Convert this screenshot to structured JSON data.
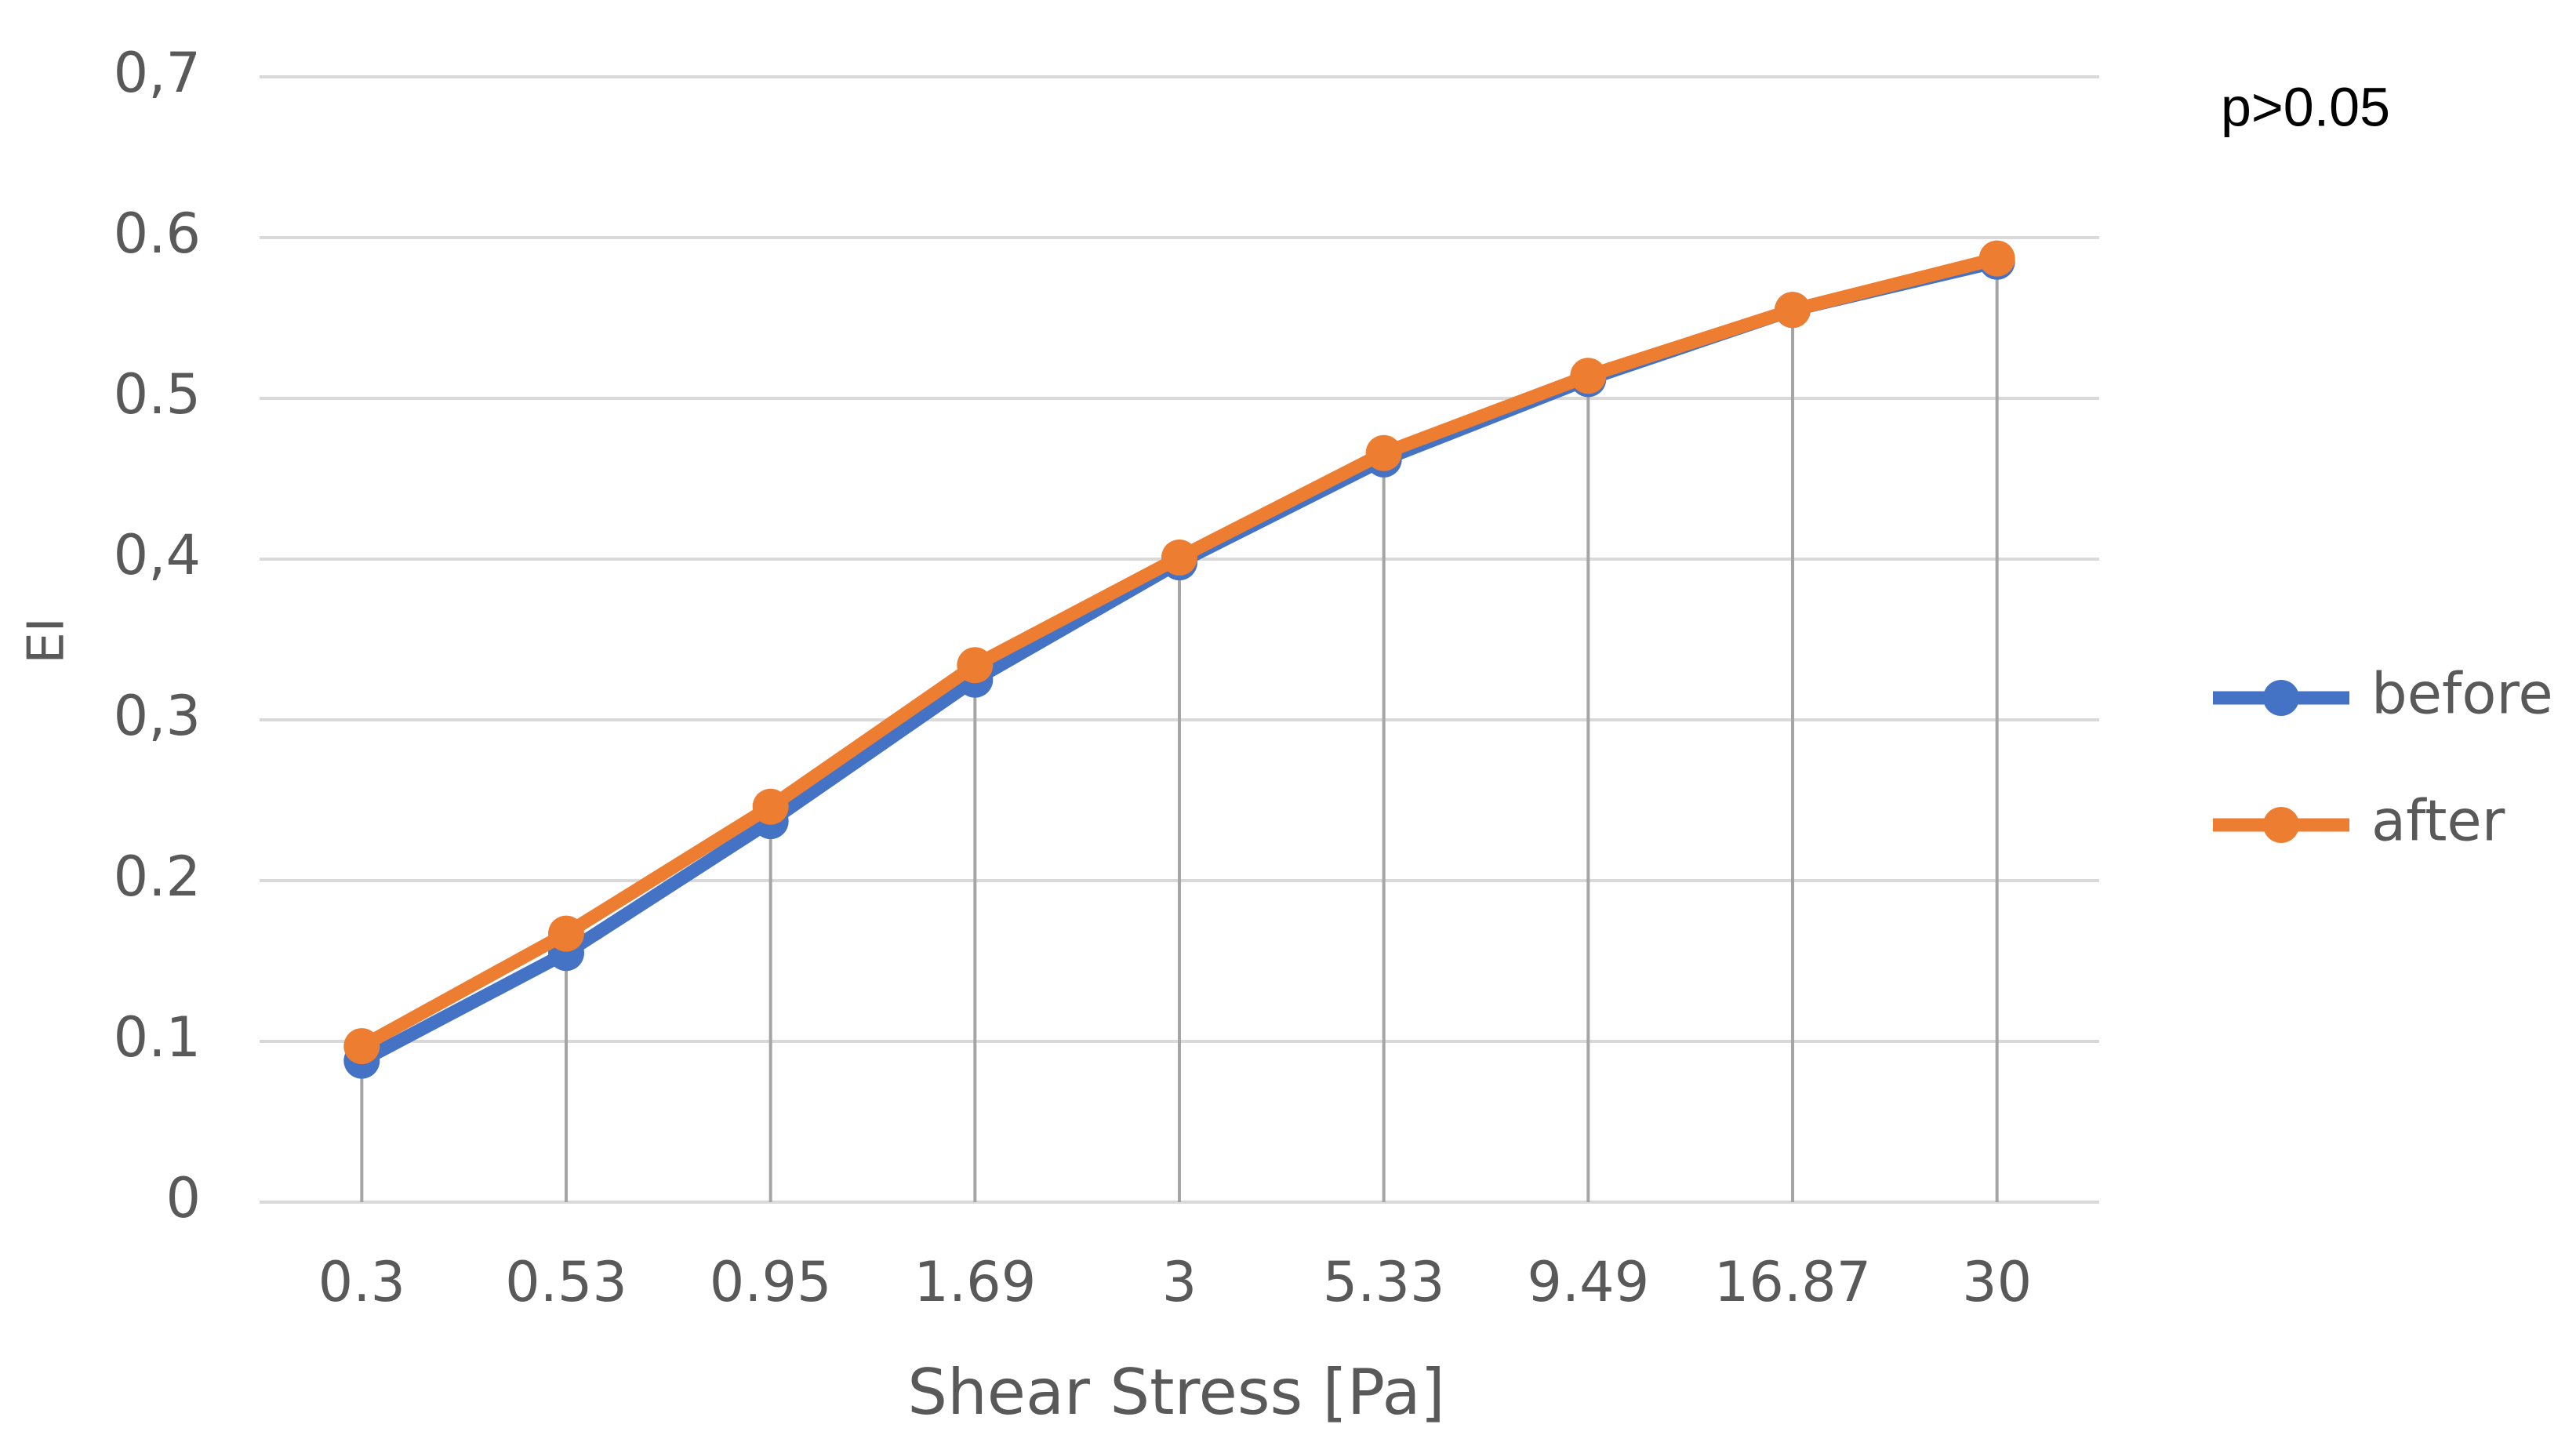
{
  "chart_data": {
    "type": "line",
    "x_label": "Shear Stress [Pa]",
    "y_label": "EI",
    "annotation": "p>0.05",
    "categories": [
      "0.3",
      "0.53",
      "0.95",
      "1.69",
      "3",
      "5.33",
      "9.49",
      "16.87",
      "30"
    ],
    "series": [
      {
        "name": "before",
        "color": "#4472c4",
        "values": [
          0.088,
          0.155,
          0.237,
          0.325,
          0.398,
          0.462,
          0.512,
          0.555,
          0.585
        ]
      },
      {
        "name": "after",
        "color": "#ed7d31",
        "values": [
          0.097,
          0.167,
          0.246,
          0.334,
          0.401,
          0.466,
          0.514,
          0.555,
          0.587
        ]
      }
    ],
    "ylim": [
      0,
      0.7
    ],
    "yticks": [
      0,
      0.1,
      0.2,
      {
        "value": 0.3,
        "label": "0,3"
      },
      {
        "value": 0.4,
        "label": "0,4"
      },
      0.5,
      0.6,
      {
        "value": 0.7,
        "label": "0,7"
      }
    ],
    "grid": true,
    "drop_lines": true,
    "legend": "right"
  }
}
